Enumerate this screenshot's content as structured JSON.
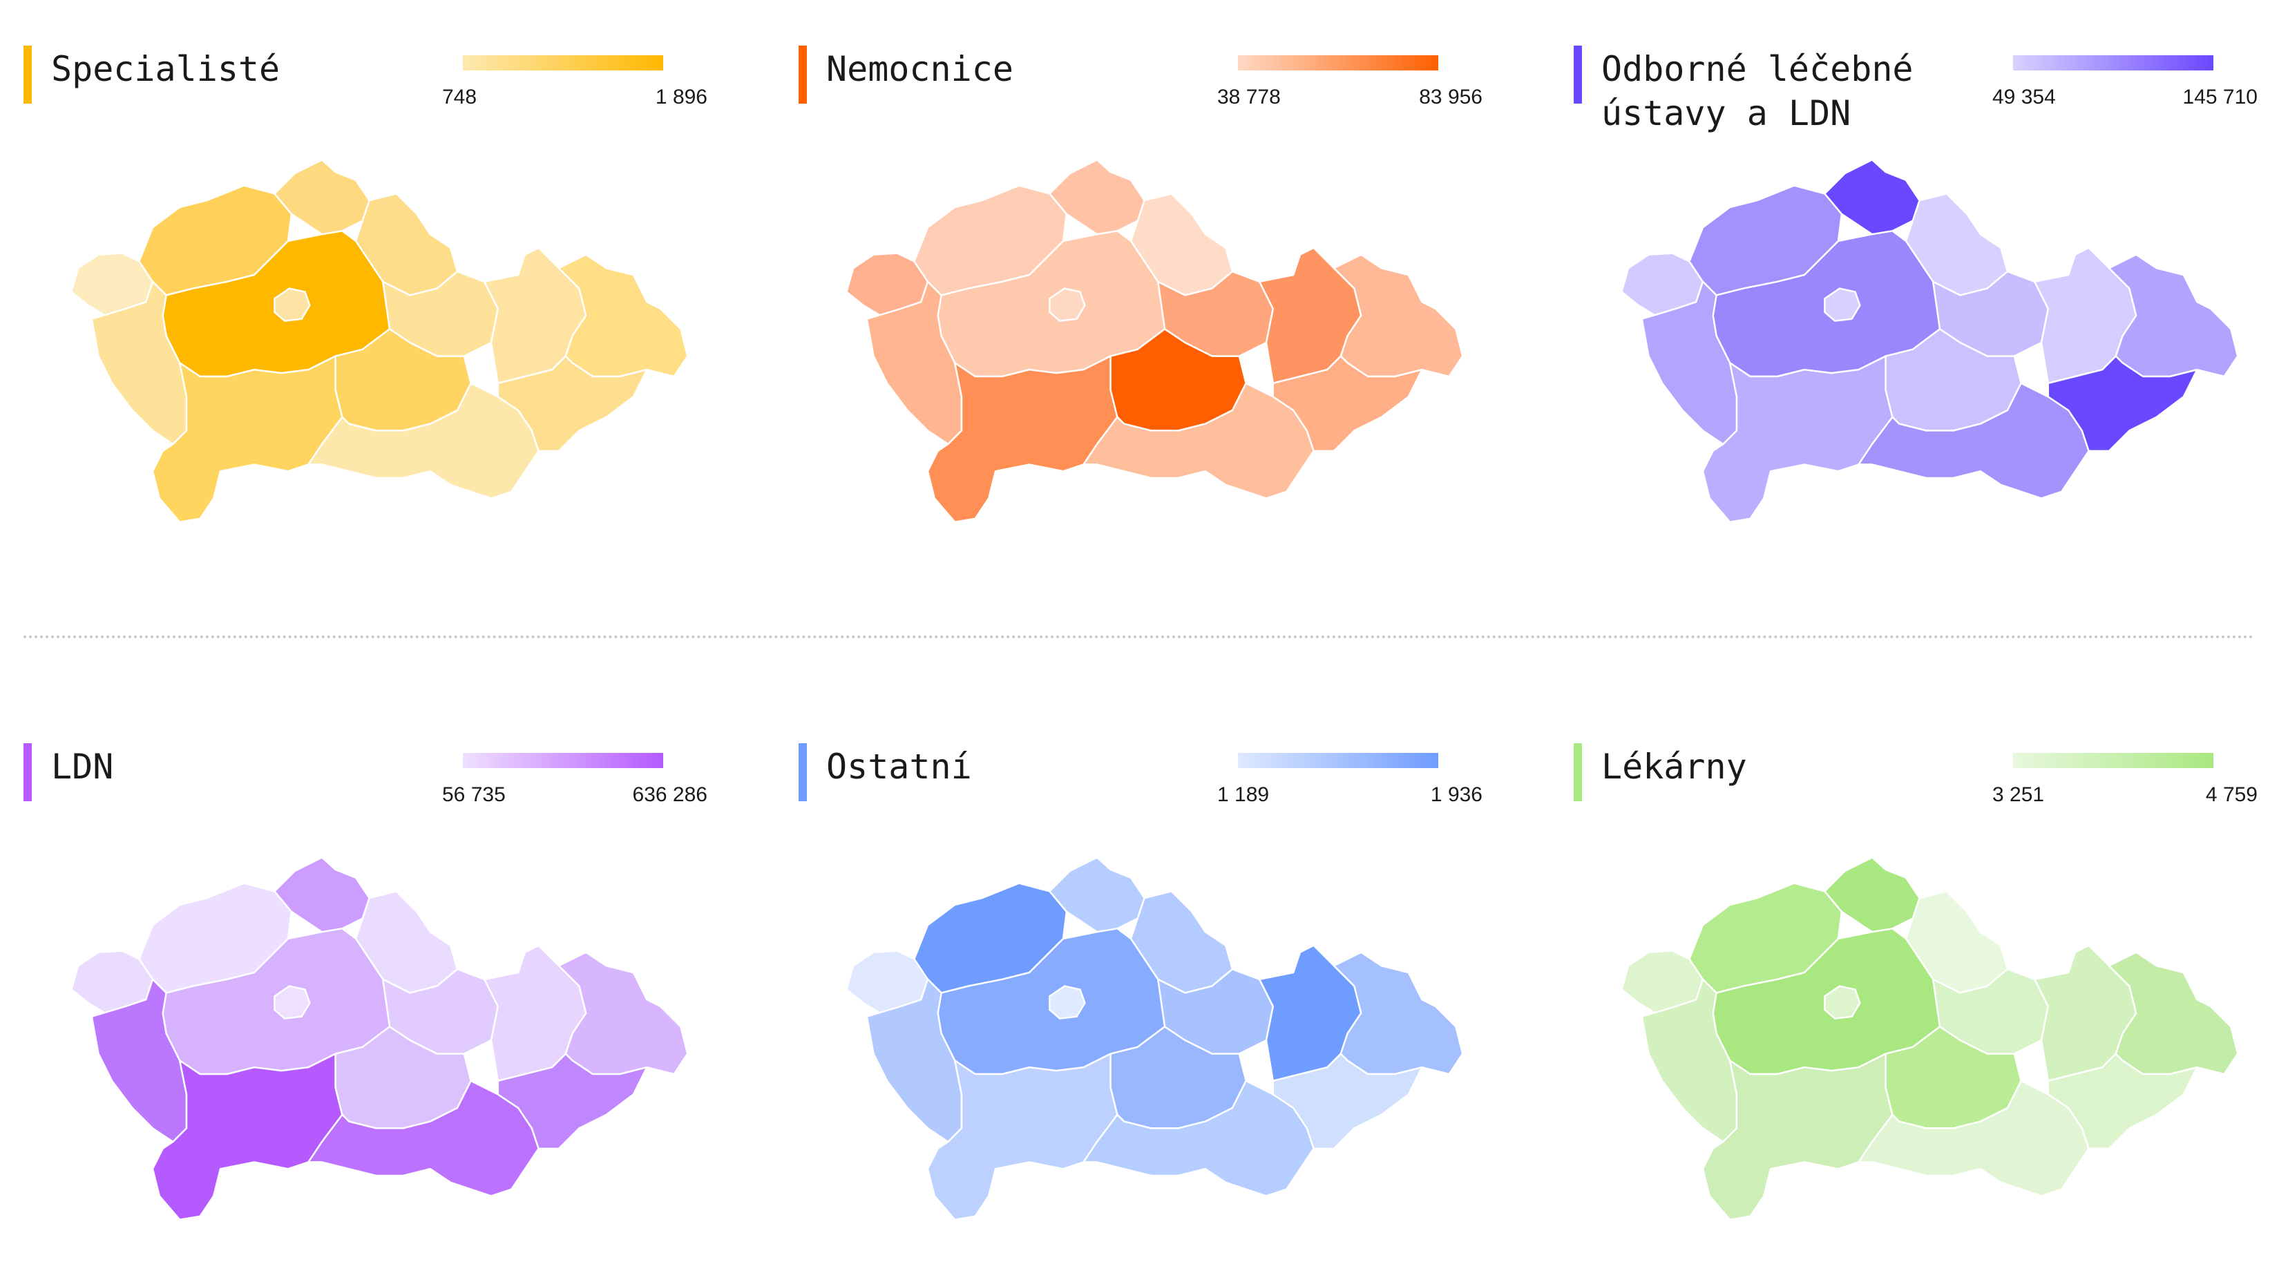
{
  "panels": [
    {
      "id": "specialiste",
      "title": "Specialisté",
      "accent": "#ffb800",
      "gradient": [
        "#fde9b0",
        "#ffb800"
      ],
      "legend_min": "748",
      "legend_max": "1 896",
      "fills": {
        "KV": "#fdebbd",
        "UL": "#ffd05a",
        "LI": "#fed980",
        "KH": "#fedd8a",
        "PA": "#fee29a",
        "ST": "#ffb800",
        "PHA": "#fde4a6",
        "PL": "#fee29a",
        "JC": "#ffd45f",
        "VY": "#ffd462",
        "JM": "#fee7ab",
        "OL": "#fee3a2",
        "MS": "#ffde85",
        "ZL": "#fedf90"
      }
    },
    {
      "id": "nemocnice",
      "title": "Nemocnice",
      "accent": "#ff5f00",
      "gradient": [
        "#ffd9c4",
        "#ff5f00"
      ],
      "legend_min": "38 778",
      "legend_max": "83 956",
      "fills": {
        "KV": "#ffb18f",
        "UL": "#ffcdb4",
        "LI": "#ffc2a5",
        "KH": "#ffdcc8",
        "PA": "#ffa67c",
        "ST": "#ffc9ad",
        "PHA": "#ffd9c4",
        "PL": "#ffb690",
        "JC": "#ff8f55",
        "VY": "#ff5f00",
        "JM": "#ffbe9c",
        "OL": "#ff9463",
        "MS": "#ffb996",
        "ZL": "#ffae86"
      }
    },
    {
      "id": "odborne",
      "title": "Odborné léčebné\nústavy a LDN",
      "accent": "#6a48ff",
      "gradient": [
        "#d9d1ff",
        "#6a48ff"
      ],
      "legend_min": "49 354",
      "legend_max": "145 710",
      "fills": {
        "KV": "#d3cbff",
        "UL": "#a391fd",
        "LI": "#6a48ff",
        "KH": "#d8d1ff",
        "PA": "#c9bdff",
        "ST": "#9b87fd",
        "PHA": "#d8d1ff",
        "PL": "#b3a4fe",
        "JC": "#bbaefe",
        "VY": "#cbc1ff",
        "JM": "#a593fd",
        "OL": "#d5cdff",
        "MS": "#b1a3fe",
        "ZL": "#6a48ff"
      }
    },
    {
      "id": "ldn",
      "title": "LDN",
      "accent": "#b45aff",
      "gradient": [
        "#efe0ff",
        "#b45aff"
      ],
      "legend_min": "56 735",
      "legend_max": "636 286",
      "fills": {
        "KV": "#eadcff",
        "UL": "#ecdfff",
        "LI": "#cc9cff",
        "KH": "#eadcff",
        "PA": "#e1cbff",
        "ST": "#d6b2ff",
        "PHA": "#efe0ff",
        "PL": "#bb78ff",
        "JC": "#b45aff",
        "VY": "#dcc1ff",
        "JM": "#bd72ff",
        "OL": "#e7d5ff",
        "MS": "#d7b6ff",
        "ZL": "#c087ff"
      }
    },
    {
      "id": "ostatni",
      "title": "Ostatní",
      "accent": "#6f9cff",
      "gradient": [
        "#dfe9ff",
        "#6f9cff"
      ],
      "legend_min": "1 189",
      "legend_max": "1 936",
      "fills": {
        "KV": "#dfe8ff",
        "UL": "#6f9cff",
        "LI": "#b6cdff",
        "KH": "#b4cbff",
        "PA": "#a8c2ff",
        "ST": "#86abff",
        "PHA": "#dfe9ff",
        "PL": "#b1c9ff",
        "JC": "#bcd1ff",
        "VY": "#98b7ff",
        "JM": "#b6cdff",
        "OL": "#6f9cff",
        "MS": "#a5c0ff",
        "ZL": "#d1dfff"
      }
    },
    {
      "id": "lekarny",
      "title": "Lékárny",
      "accent": "#a9e880",
      "gradient": [
        "#e8f8de",
        "#a9e880"
      ],
      "legend_min": "3 251",
      "legend_max": "4 759",
      "fills": {
        "KV": "#ddf4cd",
        "UL": "#b5eb8f",
        "LI": "#a9e880",
        "KH": "#e8f8de",
        "PA": "#d9f3c8",
        "ST": "#a9e880",
        "PHA": "#ddf4cd",
        "PL": "#d3f1bf",
        "JC": "#cdefb7",
        "VY": "#b9ec94",
        "JM": "#e1f5d4",
        "OL": "#d3f1bf",
        "MS": "#c3eda7",
        "ZL": "#dcf4cc"
      }
    }
  ]
}
